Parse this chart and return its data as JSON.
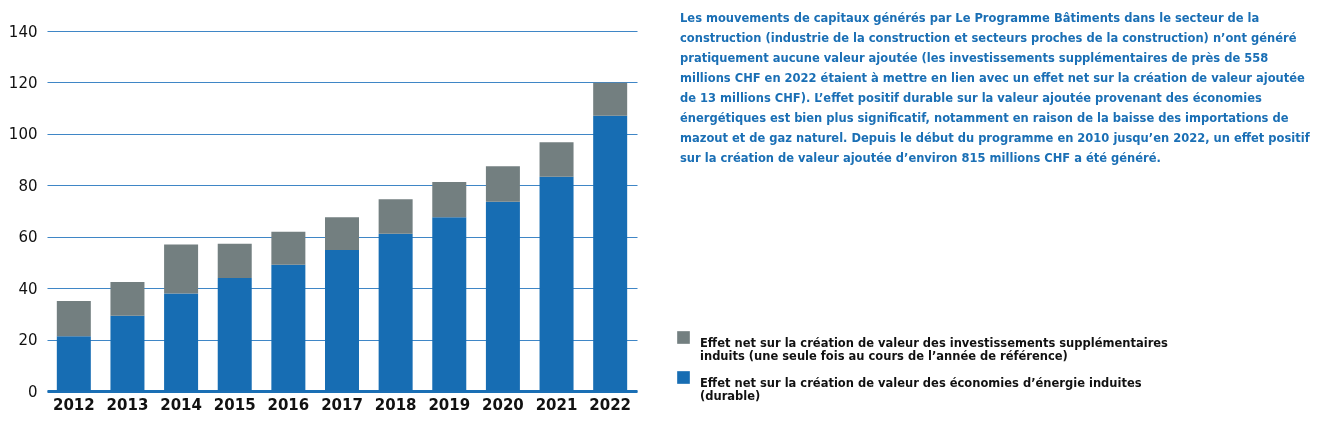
{
  "chart_data": {
    "type": "bar",
    "stacked": true,
    "categories": [
      "2012",
      "2013",
      "2014",
      "2015",
      "2016",
      "2017",
      "2018",
      "2019",
      "2020",
      "2021",
      "2022"
    ],
    "series": [
      {
        "name": "Effet net sur la création de valeur des économies d’énergie induites (durable)",
        "color": "#176db3",
        "values": [
          21.3,
          29.3,
          37.9,
          43.9,
          49.1,
          54.8,
          61.2,
          67.6,
          73.6,
          83.3,
          107.0
        ]
      },
      {
        "name": "Effet net sur la création de valeur des investissements supplémentaires induits (une seule fois au cours de l’année de référence)",
        "color": "#737f80",
        "values": [
          13.7,
          13.1,
          19.1,
          13.4,
          12.8,
          12.8,
          13.4,
          13.7,
          13.8,
          13.4,
          12.9
        ]
      }
    ],
    "ylim": [
      0,
      140
    ],
    "yticks": [
      0,
      20,
      40,
      60,
      80,
      100,
      120,
      140
    ],
    "grid": "y",
    "legend": "bottom right",
    "annotations": [
      "Les mouvements de capitaux générés par Le Programme Bâtiments dans le secteur de la construction (industrie de la construction et secteurs proches de la construction) n’ont généré pratiquement aucune valeur ajoutée (les investissements supplémentaires de près de 558 millions CHF en 2022 étaient à mettre en lien avec un effet net sur la création de valeur ajoutée de 13 millions CHF). L’effet positif durable sur la valeur ajoutée provenant des économies énergétiques est bien plus significatif, notamment en raison de la baisse des importations de mazout et de gaz naturel. Depuis le début du programme en 2010 jusqu’en 2022, un effet positif sur la création de valeur ajoutée d’environ 815 millions CHF a été généré."
    ]
  }
}
